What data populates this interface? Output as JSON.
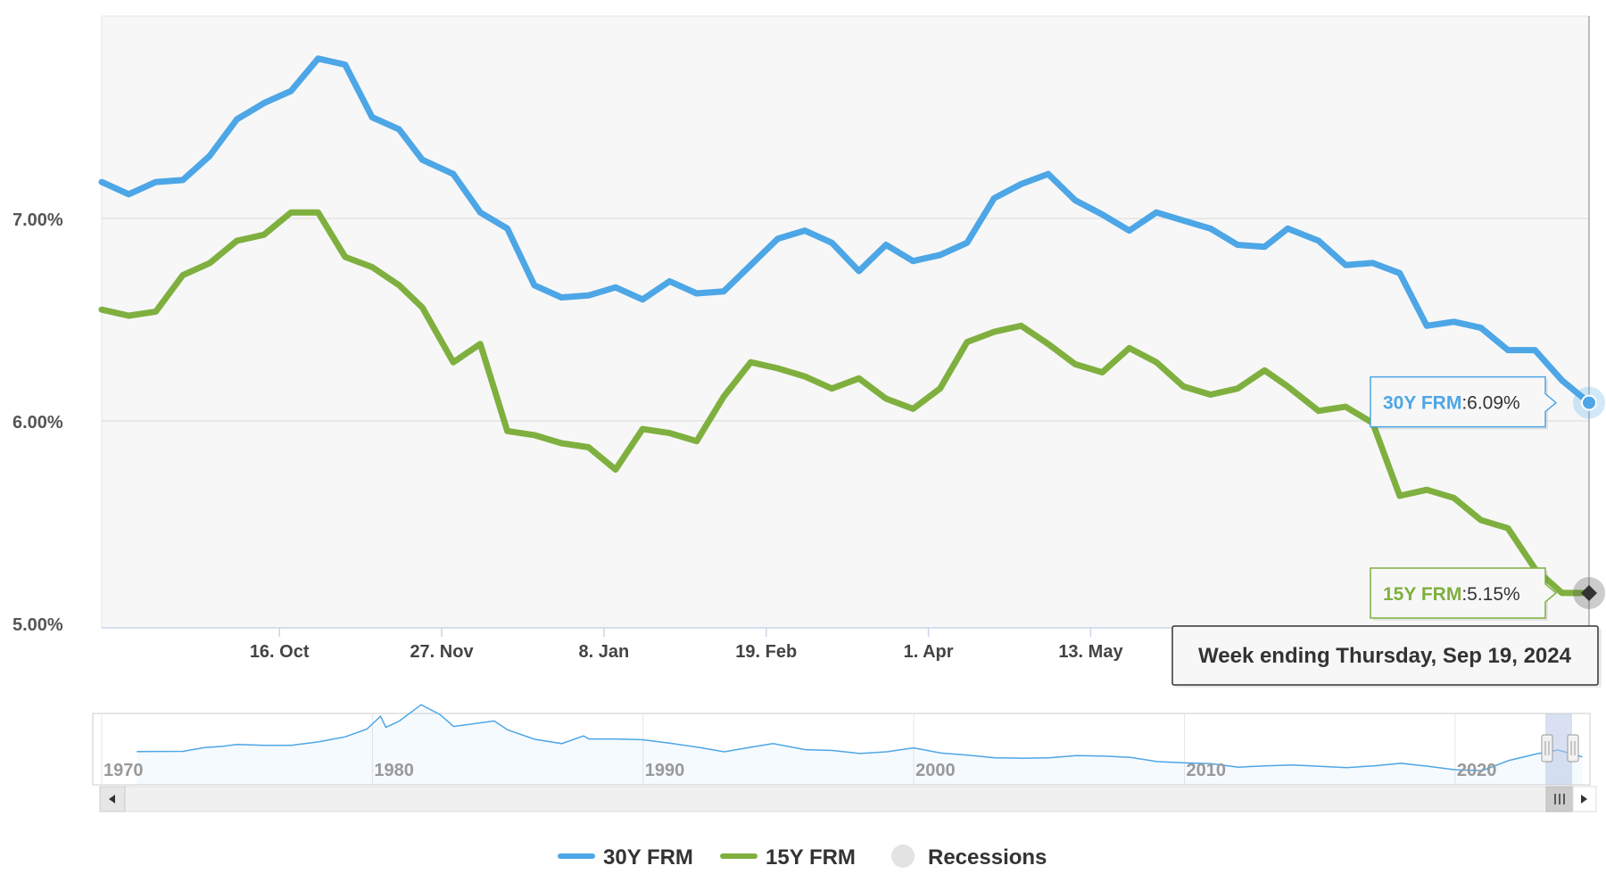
{
  "chart_data": {
    "type": "line",
    "y_ticks": [
      "5.00%",
      "6.00%",
      "7.00%"
    ],
    "ylim": [
      5.0,
      8.0
    ],
    "grid": "horizontal",
    "x_ticks": [
      "16. Oct",
      "27. Nov",
      "8. Jan",
      "19. Feb",
      "1. Apr",
      "13. May"
    ],
    "x_dates": [
      "2023-08-31",
      "2023-09-07",
      "2023-09-14",
      "2023-09-21",
      "2023-09-28",
      "2023-10-05",
      "2023-10-12",
      "2023-10-19",
      "2023-10-26",
      "2023-11-02",
      "2023-11-09",
      "2023-11-16",
      "2023-11-22",
      "2023-11-30",
      "2023-12-07",
      "2023-12-14",
      "2023-12-21",
      "2023-12-28",
      "2024-01-04",
      "2024-01-11",
      "2024-01-18",
      "2024-01-25",
      "2024-02-01",
      "2024-02-08",
      "2024-02-15",
      "2024-02-22",
      "2024-02-29",
      "2024-03-07",
      "2024-03-14",
      "2024-03-21",
      "2024-03-28",
      "2024-04-04",
      "2024-04-11",
      "2024-04-18",
      "2024-04-25",
      "2024-05-02",
      "2024-05-09",
      "2024-05-16",
      "2024-05-23",
      "2024-05-30",
      "2024-06-06",
      "2024-06-13",
      "2024-06-20",
      "2024-06-27",
      "2024-07-03",
      "2024-07-11",
      "2024-07-18",
      "2024-07-25",
      "2024-08-01",
      "2024-08-08",
      "2024-08-15",
      "2024-08-22",
      "2024-08-29",
      "2024-09-05",
      "2024-09-12",
      "2024-09-19"
    ],
    "series": [
      {
        "name": "30Y FRM",
        "color": "#4da6e6",
        "values": [
          7.18,
          7.12,
          7.18,
          7.19,
          7.31,
          7.49,
          7.57,
          7.63,
          7.79,
          7.76,
          7.5,
          7.44,
          7.29,
          7.22,
          7.03,
          6.95,
          6.67,
          6.61,
          6.62,
          6.66,
          6.6,
          6.69,
          6.63,
          6.64,
          6.77,
          6.9,
          6.94,
          6.88,
          6.74,
          6.87,
          6.79,
          6.82,
          6.88,
          7.1,
          7.17,
          7.22,
          7.09,
          7.02,
          6.94,
          7.03,
          6.99,
          6.95,
          6.87,
          6.86,
          6.95,
          6.89,
          6.77,
          6.78,
          6.73,
          6.47,
          6.49,
          6.46,
          6.35,
          6.35,
          6.2,
          6.09
        ]
      },
      {
        "name": "15Y FRM",
        "color": "#7fb03f",
        "values": [
          6.55,
          6.52,
          6.54,
          6.72,
          6.78,
          6.89,
          6.92,
          7.03,
          7.03,
          6.81,
          6.76,
          6.67,
          6.56,
          6.29,
          6.38,
          5.95,
          5.93,
          5.89,
          5.87,
          5.76,
          5.96,
          5.94,
          5.9,
          6.12,
          6.29,
          6.26,
          6.22,
          6.16,
          6.21,
          6.11,
          6.06,
          6.16,
          6.39,
          6.44,
          6.47,
          6.38,
          6.28,
          6.24,
          6.36,
          6.29,
          6.17,
          6.13,
          6.16,
          6.25,
          6.17,
          6.05,
          6.07,
          5.99,
          5.63,
          5.66,
          5.62,
          5.51,
          5.47,
          5.27,
          5.15,
          5.15
        ]
      }
    ],
    "tooltips": [
      {
        "series": "30Y FRM",
        "sep": ":",
        "value": "6.09%"
      },
      {
        "series": "15Y FRM",
        "sep": ":",
        "value": "5.15%"
      }
    ],
    "crosshair_label": "Week ending Thursday, Sep 19, 2024",
    "navigator": {
      "year_labels": [
        "1970",
        "1980",
        "1990",
        "2000",
        "2010",
        "2020"
      ],
      "history_30y": [
        [
          1971.3,
          7.33
        ],
        [
          1972,
          7.38
        ],
        [
          1973,
          7.4
        ],
        [
          1973.8,
          8.3
        ],
        [
          1974.5,
          8.6
        ],
        [
          1975,
          9.0
        ],
        [
          1976,
          8.8
        ],
        [
          1977,
          8.8
        ],
        [
          1978,
          9.6
        ],
        [
          1979,
          10.8
        ],
        [
          1979.8,
          12.6
        ],
        [
          1980.3,
          15.6
        ],
        [
          1980.5,
          13.0
        ],
        [
          1981,
          14.5
        ],
        [
          1981.8,
          18.3
        ],
        [
          1982.5,
          16.0
        ],
        [
          1983,
          13.2
        ],
        [
          1984.5,
          14.5
        ],
        [
          1985,
          12.4
        ],
        [
          1986,
          10.2
        ],
        [
          1987,
          9.2
        ],
        [
          1987.8,
          11.0
        ],
        [
          1988,
          10.3
        ],
        [
          1989,
          10.3
        ],
        [
          1990,
          10.1
        ],
        [
          1991,
          9.3
        ],
        [
          1992,
          8.4
        ],
        [
          1993,
          7.3
        ],
        [
          1994,
          8.4
        ],
        [
          1994.8,
          9.2
        ],
        [
          1996,
          7.8
        ],
        [
          1997,
          7.6
        ],
        [
          1998,
          6.9
        ],
        [
          1999,
          7.3
        ],
        [
          2000,
          8.2
        ],
        [
          2001,
          7.0
        ],
        [
          2002,
          6.5
        ],
        [
          2003,
          5.9
        ],
        [
          2004,
          5.8
        ],
        [
          2005,
          5.9
        ],
        [
          2006,
          6.4
        ],
        [
          2007,
          6.3
        ],
        [
          2008,
          6.0
        ],
        [
          2009,
          5.0
        ],
        [
          2010,
          4.7
        ],
        [
          2011,
          4.5
        ],
        [
          2012,
          3.7
        ],
        [
          2013,
          4.0
        ],
        [
          2014,
          4.2
        ],
        [
          2015,
          3.9
        ],
        [
          2016,
          3.6
        ],
        [
          2017,
          4.0
        ],
        [
          2018,
          4.6
        ],
        [
          2019,
          3.9
        ],
        [
          2020,
          3.1
        ],
        [
          2021,
          2.9
        ],
        [
          2022,
          5.3
        ],
        [
          2023,
          6.8
        ],
        [
          2023.8,
          7.7
        ],
        [
          2024.7,
          6.1
        ]
      ]
    }
  },
  "legend": {
    "items": [
      {
        "label": "30Y FRM",
        "color": "#4da6e6"
      },
      {
        "label": "15Y FRM",
        "color": "#7fb03f"
      },
      {
        "label": "Recessions",
        "color": "#e3e3e3"
      }
    ]
  }
}
